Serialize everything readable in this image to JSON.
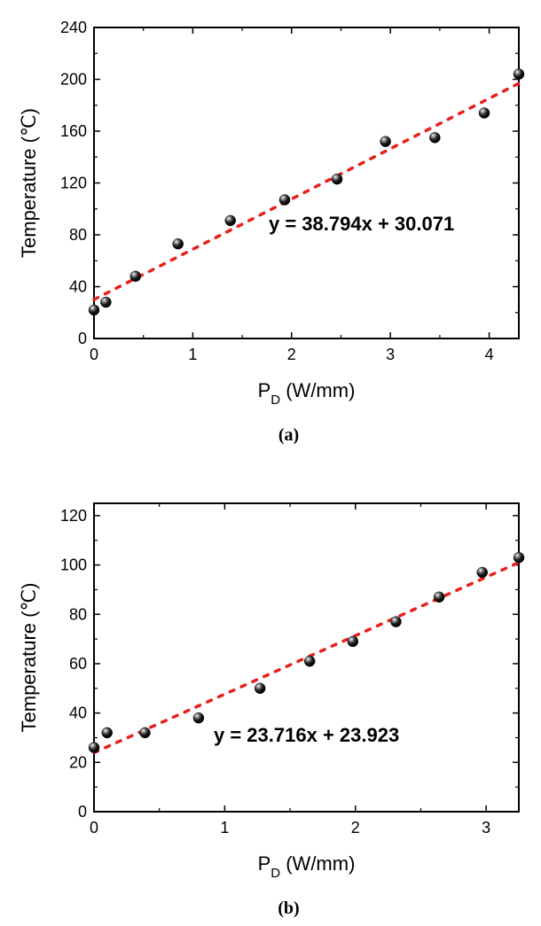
{
  "chart_data": [
    {
      "type": "scatter",
      "panel_label": "(a)",
      "xlabel": {
        "main": "P",
        "sub": "D",
        "rest": " (W/mm)"
      },
      "ylabel": "Temperature (℃)",
      "xlim": [
        0,
        4.3
      ],
      "ylim": [
        0,
        240
      ],
      "xticks": [
        0,
        1,
        2,
        3,
        4
      ],
      "yticks": [
        0,
        40,
        80,
        120,
        160,
        200,
        240
      ],
      "points": [
        {
          "x": 0.0,
          "y": 22
        },
        {
          "x": 0.12,
          "y": 28
        },
        {
          "x": 0.42,
          "y": 48
        },
        {
          "x": 0.85,
          "y": 73
        },
        {
          "x": 1.38,
          "y": 91
        },
        {
          "x": 1.93,
          "y": 107
        },
        {
          "x": 2.46,
          "y": 123
        },
        {
          "x": 2.95,
          "y": 152
        },
        {
          "x": 3.45,
          "y": 155
        },
        {
          "x": 3.95,
          "y": 174
        },
        {
          "x": 4.3,
          "y": 204
        }
      ],
      "fit": {
        "slope": 38.794,
        "intercept": 30.071,
        "x_range": [
          0,
          4.3
        ],
        "color": "#e8201c"
      },
      "equation": "y = 38.794x + 30.071"
    },
    {
      "type": "scatter",
      "panel_label": "(b)",
      "xlabel": {
        "main": "P",
        "sub": "D",
        "rest": " (W/mm)"
      },
      "ylabel": "Temperature (℃)",
      "xlim": [
        0,
        3.25
      ],
      "ylim": [
        0,
        125
      ],
      "xticks": [
        0,
        1,
        2,
        3
      ],
      "yticks": [
        0,
        20,
        40,
        60,
        80,
        100,
        120
      ],
      "points": [
        {
          "x": 0.0,
          "y": 26
        },
        {
          "x": 0.1,
          "y": 32
        },
        {
          "x": 0.39,
          "y": 32
        },
        {
          "x": 0.8,
          "y": 38
        },
        {
          "x": 1.27,
          "y": 50
        },
        {
          "x": 1.65,
          "y": 61
        },
        {
          "x": 1.98,
          "y": 69
        },
        {
          "x": 2.31,
          "y": 77
        },
        {
          "x": 2.64,
          "y": 87
        },
        {
          "x": 2.97,
          "y": 97
        },
        {
          "x": 3.25,
          "y": 103
        }
      ],
      "fit": {
        "slope": 23.716,
        "intercept": 23.923,
        "x_range": [
          0,
          3.25
        ],
        "color": "#e8201c"
      },
      "equation": "y = 23.716x + 23.923"
    }
  ]
}
